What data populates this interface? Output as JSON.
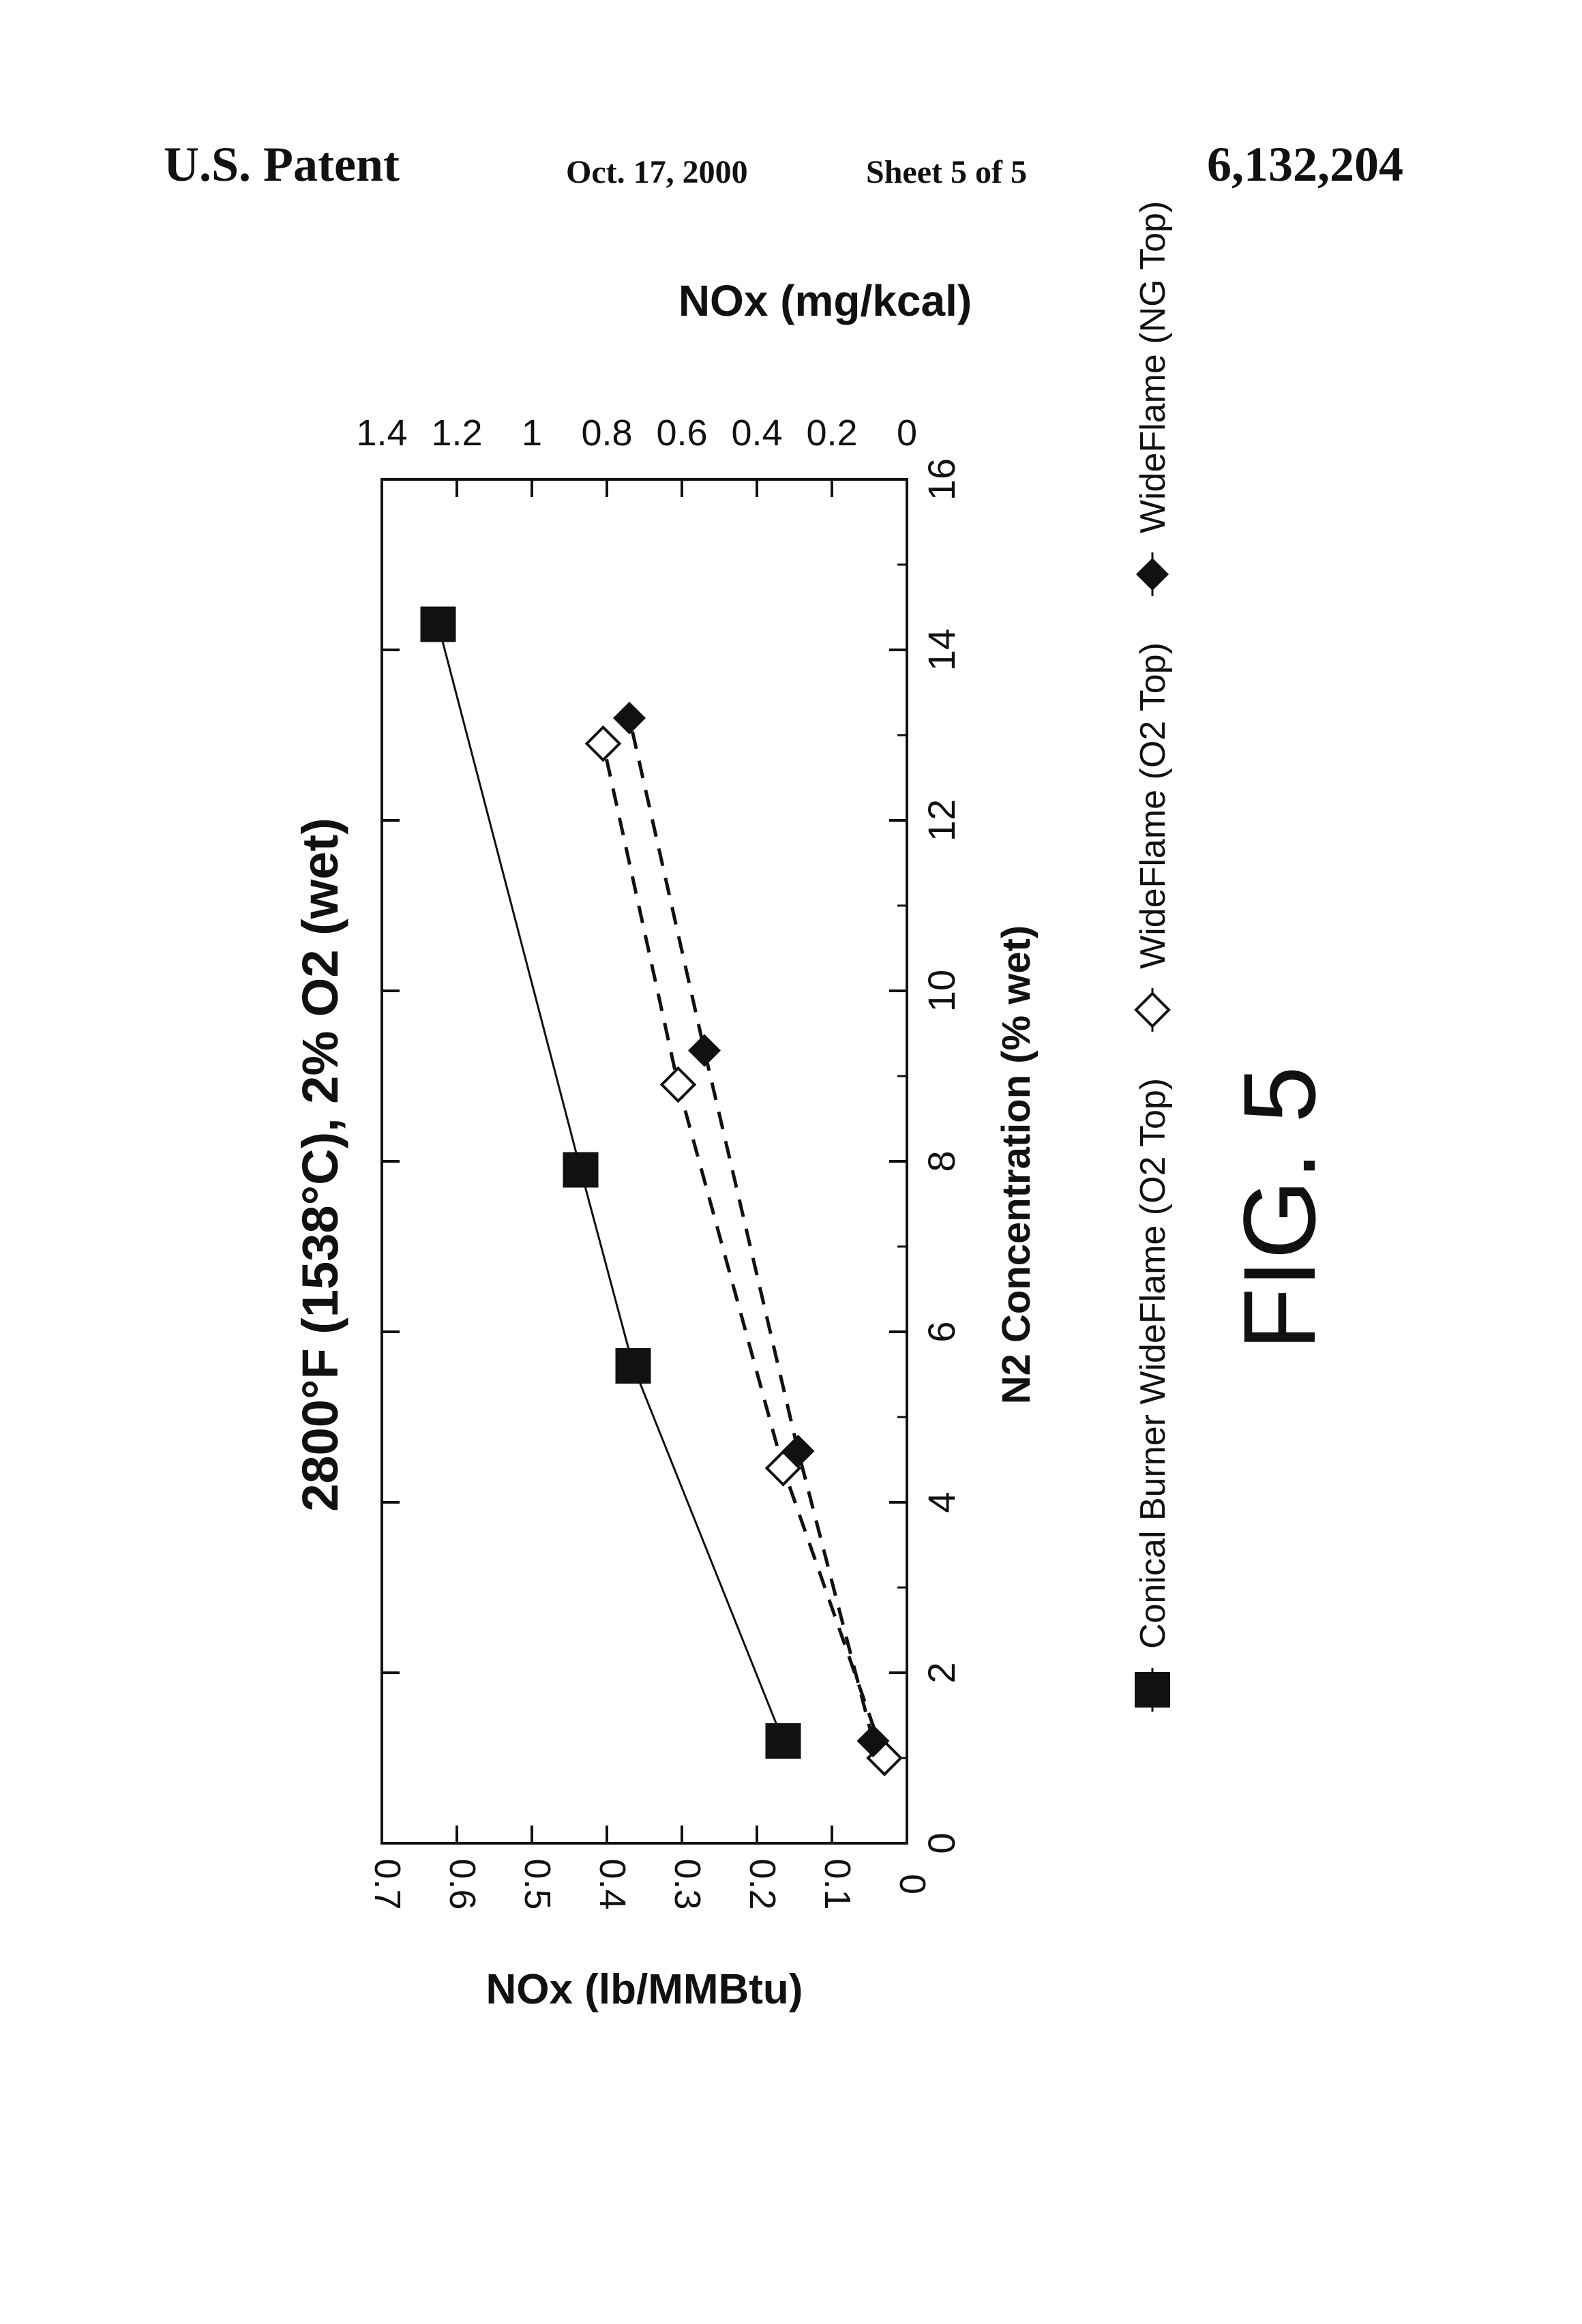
{
  "header": {
    "left": "U.S. Patent",
    "date": "Oct. 17, 2000",
    "sheet": "Sheet 5 of 5",
    "number": "6,132,204"
  },
  "figure_label": "FIG. 5",
  "chart_data": {
    "type": "scatter",
    "title": "2800°F (1538°C),  2% O2 (wet)",
    "xlabel": "N2 Concentration (% wet)",
    "ylabel": "NOx (lb/MMBtu)",
    "y2label": "NOx (mg/kcal)",
    "xlim": [
      0,
      16
    ],
    "ylim": [
      0,
      0.7
    ],
    "y2lim": [
      0,
      1.4
    ],
    "xticks": [
      "0",
      "2",
      "4",
      "6",
      "8",
      "10",
      "12",
      "14",
      "16"
    ],
    "yticks": [
      "0",
      "0.1",
      "0.2",
      "0.3",
      "0.4",
      "0.5",
      "0.6",
      "0.7"
    ],
    "y2ticks": [
      "0",
      "0.2",
      "0.4",
      "0.6",
      "0.8",
      "1",
      "1.2",
      "1.4"
    ],
    "legend_position": "bottom",
    "grid": false,
    "series": [
      {
        "name": "Conical Burner WideFlame (O2 Top)",
        "marker": "square-filled",
        "line": "solid",
        "color": "#111111",
        "x": [
          1.2,
          5.6,
          7.9,
          14.3
        ],
        "y": [
          0.165,
          0.365,
          0.435,
          0.625
        ]
      },
      {
        "name": "WideFlame (O2 Top)",
        "marker": "diamond-open",
        "line": "dashed",
        "color": "#111111",
        "x": [
          1.0,
          4.4,
          8.9,
          12.9
        ],
        "y": [
          0.03,
          0.165,
          0.305,
          0.405
        ]
      },
      {
        "name": "WideFlame (NG Top)",
        "marker": "diamond-filled",
        "line": "dashed",
        "color": "#111111",
        "x": [
          1.2,
          4.6,
          9.3,
          13.2
        ],
        "y": [
          0.045,
          0.145,
          0.27,
          0.37
        ]
      }
    ]
  }
}
